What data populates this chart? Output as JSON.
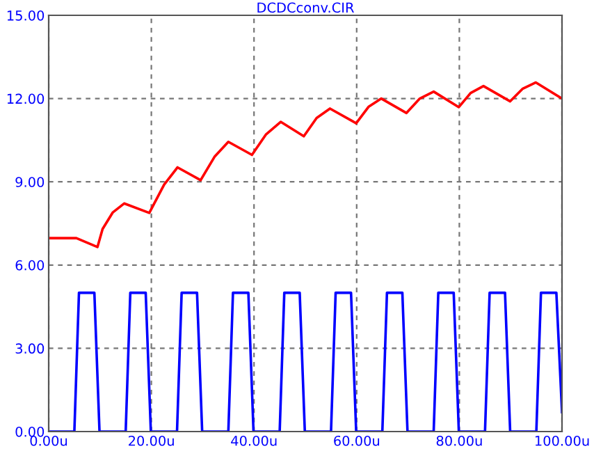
{
  "chart_data": {
    "type": "line",
    "title": "DCDCconv.CIR",
    "xlim": [
      0,
      100
    ],
    "ylim": [
      0,
      15
    ],
    "xticks": [
      {
        "value": 0,
        "label": "0.00u"
      },
      {
        "value": 20,
        "label": "20.00u"
      },
      {
        "value": 40,
        "label": "40.00u"
      },
      {
        "value": 60,
        "label": "60.00u"
      },
      {
        "value": 80,
        "label": "80.00u"
      },
      {
        "value": 100,
        "label": "100.00u"
      }
    ],
    "yticks": [
      {
        "value": 0,
        "label": "0.00"
      },
      {
        "value": 3,
        "label": "3.00"
      },
      {
        "value": 6,
        "label": "6.00"
      },
      {
        "value": 9,
        "label": "9.00"
      },
      {
        "value": 12,
        "label": "12.00"
      },
      {
        "value": 15,
        "label": "15.00"
      }
    ],
    "grid": true,
    "line_style": "solid",
    "series": [
      {
        "color": "#ff0000",
        "x": [
          0,
          5.4,
          9.5,
          10.5,
          12.5,
          14.7,
          19.6,
          22.5,
          25.1,
          29.6,
          32.3,
          35.0,
          39.6,
          42.3,
          45.2,
          49.7,
          52.2,
          54.8,
          59.9,
          62.3,
          64.8,
          69.7,
          72.3,
          75.0,
          79.9,
          82.2,
          84.7,
          89.9,
          92.3,
          94.9,
          100
        ],
        "values": [
          6.97,
          6.97,
          6.65,
          7.3,
          7.9,
          8.22,
          7.88,
          8.9,
          9.52,
          9.06,
          9.9,
          10.44,
          9.97,
          10.7,
          11.16,
          10.64,
          11.3,
          11.64,
          11.11,
          11.7,
          12.0,
          11.48,
          12.0,
          12.25,
          11.69,
          12.2,
          12.45,
          11.9,
          12.35,
          12.58,
          12.0
        ]
      },
      {
        "color": "#0000ff",
        "x": [
          0,
          5.0,
          5.9,
          8.9,
          9.9,
          15.0,
          15.9,
          18.9,
          19.9,
          25.0,
          25.9,
          28.9,
          29.9,
          35.0,
          35.9,
          38.9,
          39.9,
          45.0,
          45.9,
          48.9,
          49.9,
          55.0,
          55.9,
          58.9,
          59.9,
          65.0,
          65.9,
          68.9,
          69.9,
          75.0,
          75.9,
          78.9,
          79.9,
          85.0,
          85.9,
          88.9,
          89.9,
          95.0,
          95.9,
          98.9,
          100
        ],
        "values": [
          0,
          0,
          5,
          5,
          0,
          0,
          5,
          5,
          0,
          0,
          5,
          5,
          0,
          0,
          5,
          5,
          0,
          0,
          5,
          5,
          0,
          0,
          5,
          5,
          0,
          0,
          5,
          5,
          0,
          0,
          5,
          5,
          0,
          0,
          5,
          5,
          0,
          0,
          5,
          5,
          0.7
        ]
      }
    ]
  }
}
